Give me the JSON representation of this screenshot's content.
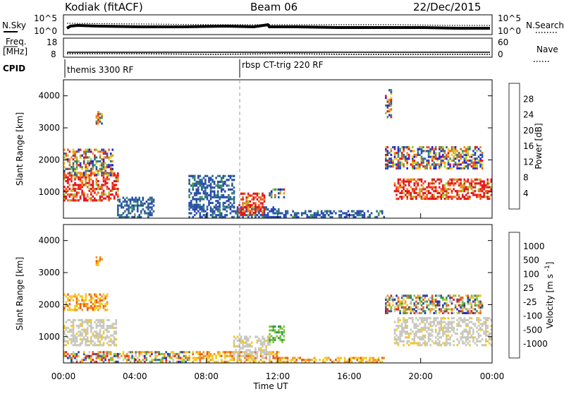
{
  "header": {
    "radar": "Kodiak (fitACF)",
    "beam": "Beam 06",
    "date": "22/Dec/2015"
  },
  "top_panels": {
    "nsky_label": "N.Sky",
    "nsearch_label": "N.Search",
    "noise_ticks_left": [
      "10^5",
      "10^0"
    ],
    "noise_ticks_right": [
      "10^5",
      "10^0"
    ],
    "freq_label_1": "Freq.",
    "freq_label_2": "[MHz]",
    "freq_ticks": [
      "18",
      "8"
    ],
    "nave_label": "Nave",
    "nave_ticks": [
      "60",
      "0"
    ],
    "cpid_label": "CPID",
    "cpid_modes": [
      "themis 3300 RF",
      "rbsp CT-trig 220 RF"
    ]
  },
  "colors": {
    "power_scale": [
      "#1e22f0",
      "#2a4bb2",
      "#2e6e87",
      "#3f9660",
      "#9ccd30",
      "#f5c81e",
      "#f09020",
      "#ef5a1e",
      "#e6141e"
    ],
    "velocity_scale": [
      "#e61e1e",
      "#f05a1e",
      "#f5961e",
      "#f5c81e",
      "#c8c8be",
      "#78c83c",
      "#3c9650",
      "#2d5aa0",
      "#1e32c8"
    ]
  },
  "chart_data": [
    {
      "type": "heatmap",
      "title": "Power",
      "xlabel": "Time UT",
      "ylabel": "Slant Range [km]",
      "x_ticks": [
        "00:00",
        "04:00",
        "08:00",
        "12:00",
        "16:00",
        "20:00",
        "00:00"
      ],
      "x_range_hours": [
        0,
        24
      ],
      "y_ticks": [
        "1000",
        "2000",
        "3000",
        "4000"
      ],
      "ylim": [
        180,
        4500
      ],
      "colorbar_label": "Power [dB]",
      "colorbar_ticks": [
        "4",
        "8",
        "12",
        "16",
        "20",
        "24",
        "28"
      ],
      "colorbar_range": [
        0,
        32
      ],
      "regions": [
        {
          "t": [
            0.0,
            3.1
          ],
          "r": [
            700,
            1600
          ],
          "level": "high"
        },
        {
          "t": [
            0.0,
            2.8
          ],
          "r": [
            1500,
            2300
          ],
          "level": "mixed"
        },
        {
          "t": [
            1.8,
            2.2
          ],
          "r": [
            3100,
            3500
          ],
          "level": "mixed"
        },
        {
          "t": [
            3.0,
            5.0
          ],
          "r": [
            180,
            800
          ],
          "level": "low"
        },
        {
          "t": [
            7.0,
            9.5
          ],
          "r": [
            500,
            1500
          ],
          "level": "low"
        },
        {
          "t": [
            7.0,
            12.0
          ],
          "r": [
            180,
            500
          ],
          "level": "low"
        },
        {
          "t": [
            9.8,
            11.2
          ],
          "r": [
            250,
            950
          ],
          "level": "high"
        },
        {
          "t": [
            11.5,
            12.3
          ],
          "r": [
            800,
            1100
          ],
          "level": "mixed"
        },
        {
          "t": [
            12.0,
            18.0
          ],
          "r": [
            180,
            400
          ],
          "level": "low"
        },
        {
          "t": [
            18.0,
            18.4
          ],
          "r": [
            3300,
            4200
          ],
          "level": "mixed"
        },
        {
          "t": [
            18.5,
            24.0
          ],
          "r": [
            750,
            1400
          ],
          "level": "high"
        },
        {
          "t": [
            18.0,
            23.5
          ],
          "r": [
            1700,
            2400
          ],
          "level": "mixed"
        }
      ]
    },
    {
      "type": "heatmap",
      "title": "Velocity",
      "xlabel": "Time UT",
      "ylabel": "Slant Range [km]",
      "x_ticks": [
        "00:00",
        "04:00",
        "08:00",
        "12:00",
        "16:00",
        "20:00",
        "00:00"
      ],
      "x_range_hours": [
        0,
        24
      ],
      "y_ticks": [
        "1000",
        "2000",
        "3000",
        "4000"
      ],
      "ylim": [
        180,
        4500
      ],
      "colorbar_label": "Velocity [m s^-1]",
      "colorbar_ticks": [
        "1000",
        "500",
        "100",
        "25",
        "-25",
        "-100",
        "-500",
        "-1000"
      ],
      "regions": [
        {
          "t": [
            0.0,
            3.0
          ],
          "r": [
            700,
            1500
          ],
          "level": "ground"
        },
        {
          "t": [
            0.0,
            2.5
          ],
          "r": [
            1800,
            2300
          ],
          "level": "neg"
        },
        {
          "t": [
            1.8,
            2.2
          ],
          "r": [
            3200,
            3500
          ],
          "level": "neg"
        },
        {
          "t": [
            0.0,
            7.0
          ],
          "r": [
            180,
            500
          ],
          "level": "mixed"
        },
        {
          "t": [
            7.0,
            12.0
          ],
          "r": [
            180,
            500
          ],
          "level": "neg"
        },
        {
          "t": [
            9.5,
            11.5
          ],
          "r": [
            300,
            1000
          ],
          "level": "ground"
        },
        {
          "t": [
            11.5,
            12.3
          ],
          "r": [
            800,
            1300
          ],
          "level": "pos"
        },
        {
          "t": [
            12.0,
            18.0
          ],
          "r": [
            180,
            350
          ],
          "level": "neg"
        },
        {
          "t": [
            18.5,
            24.0
          ],
          "r": [
            700,
            1600
          ],
          "level": "ground"
        },
        {
          "t": [
            18.0,
            23.5
          ],
          "r": [
            1700,
            2300
          ],
          "level": "mixed"
        }
      ]
    }
  ]
}
